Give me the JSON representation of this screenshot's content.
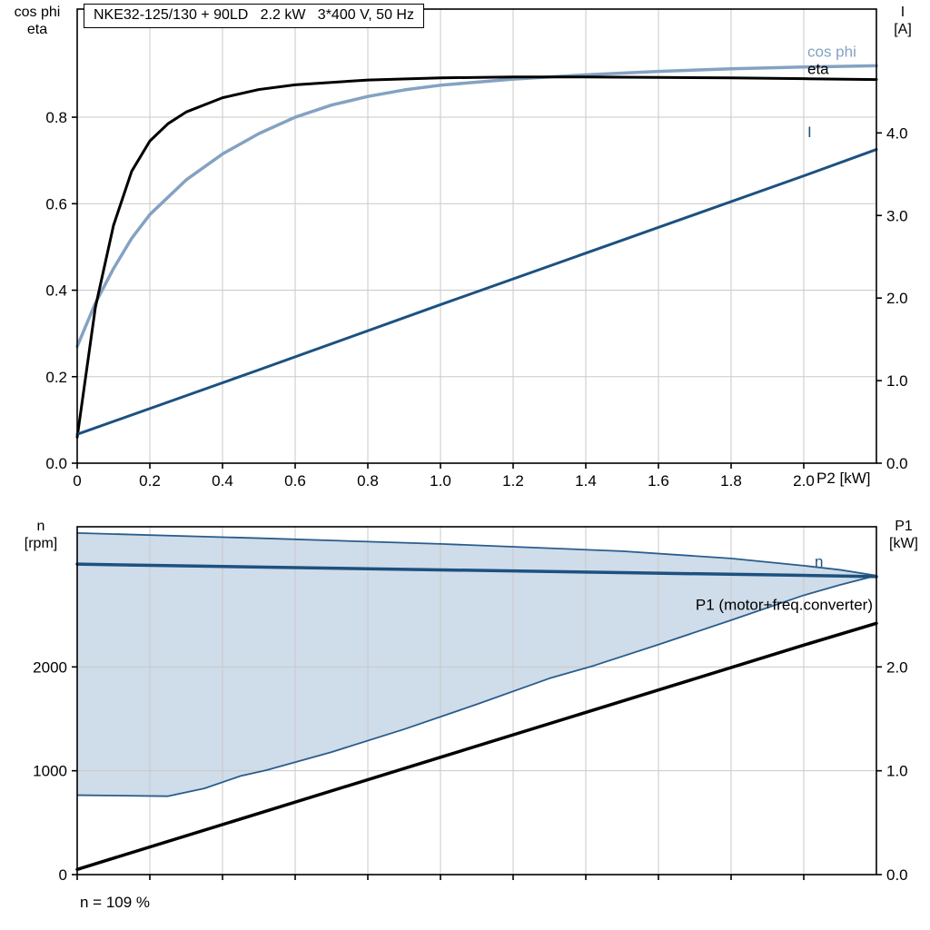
{
  "footnote": "n = 109 %",
  "axis_corner_labels": {
    "top_left": [
      "cos phi",
      "eta"
    ],
    "top_right": [
      "I",
      "[A]"
    ],
    "bottom_left": [
      "n",
      "[rpm]"
    ],
    "bottom_right": [
      "P1",
      "[kW]"
    ],
    "x_axis": "P2 [kW]"
  },
  "colors": {
    "cos_phi": "#84a2c2",
    "eta": "#000000",
    "current": "#1c5180",
    "speed": "#1c5180",
    "p1": "#000000",
    "band_fill": "#cfdce9",
    "band_edge": "#2a5d8c",
    "grid": "#c9c9c9",
    "frame": "#000000"
  },
  "chart_data": [
    {
      "type": "line",
      "name": "motor-performance-curves",
      "title": "NKE32-125/130 + 90LD   2.2 kW   3*400 V, 50 Hz",
      "x_axis": {
        "label": "P2 [kW]",
        "range": [
          0,
          2.2
        ],
        "ticks": [
          0,
          0.2,
          0.4,
          0.6,
          0.8,
          1.0,
          1.2,
          1.4,
          1.6,
          1.8,
          2.0
        ],
        "tick_labels": [
          "0",
          "0.2",
          "0.4",
          "0.6",
          "0.8",
          "1.0",
          "1.2",
          "1.4",
          "1.6",
          "1.8",
          "2.0"
        ]
      },
      "left_axis": {
        "label": "cos phi / eta",
        "range": [
          0,
          1.05
        ],
        "ticks": [
          0,
          0.2,
          0.4,
          0.6,
          0.8
        ],
        "tick_labels": [
          "0.0",
          "0.2",
          "0.4",
          "0.6",
          "0.8"
        ]
      },
      "right_axis": {
        "label": "I [A]",
        "range": [
          0,
          5.5
        ],
        "ticks": [
          0,
          1,
          2,
          3,
          4
        ],
        "tick_labels": [
          "0.0",
          "1.0",
          "2.0",
          "3.0",
          "4.0"
        ]
      },
      "series": [
        {
          "id": "cos-phi",
          "label": "cos phi",
          "axis": "left",
          "color_key": "cos_phi",
          "width": 3.5,
          "label_at": [
            2.01,
            0.94
          ],
          "label_anchor": "start",
          "points": [
            [
              0,
              0.27
            ],
            [
              0.05,
              0.37
            ],
            [
              0.1,
              0.45
            ],
            [
              0.15,
              0.52
            ],
            [
              0.2,
              0.575
            ],
            [
              0.3,
              0.655
            ],
            [
              0.4,
              0.715
            ],
            [
              0.5,
              0.762
            ],
            [
              0.6,
              0.8
            ],
            [
              0.7,
              0.828
            ],
            [
              0.8,
              0.848
            ],
            [
              0.9,
              0.863
            ],
            [
              1.0,
              0.874
            ],
            [
              1.2,
              0.888
            ],
            [
              1.4,
              0.898
            ],
            [
              1.6,
              0.906
            ],
            [
              1.8,
              0.912
            ],
            [
              2.0,
              0.916
            ],
            [
              2.2,
              0.919
            ]
          ]
        },
        {
          "id": "eta",
          "label": "eta",
          "axis": "left",
          "color_key": "eta",
          "width": 3,
          "label_at": [
            2.01,
            0.9
          ],
          "label_anchor": "start",
          "points": [
            [
              0,
              0.06
            ],
            [
              0.05,
              0.36
            ],
            [
              0.1,
              0.55
            ],
            [
              0.15,
              0.675
            ],
            [
              0.2,
              0.745
            ],
            [
              0.25,
              0.785
            ],
            [
              0.3,
              0.812
            ],
            [
              0.4,
              0.845
            ],
            [
              0.5,
              0.864
            ],
            [
              0.6,
              0.875
            ],
            [
              0.8,
              0.886
            ],
            [
              1.0,
              0.891
            ],
            [
              1.2,
              0.893
            ],
            [
              1.4,
              0.893
            ],
            [
              1.6,
              0.892
            ],
            [
              1.8,
              0.891
            ],
            [
              2.0,
              0.889
            ],
            [
              2.2,
              0.887
            ]
          ]
        },
        {
          "id": "current",
          "label": "I",
          "axis": "right",
          "color_key": "current",
          "width": 3,
          "label_at": [
            2.01,
            3.95
          ],
          "label_anchor": "start",
          "points": [
            [
              0,
              0.35
            ],
            [
              0.5,
              1.13
            ],
            [
              1.0,
              1.92
            ],
            [
              1.5,
              2.7
            ],
            [
              2.0,
              3.48
            ],
            [
              2.2,
              3.8
            ]
          ]
        }
      ]
    },
    {
      "type": "line",
      "name": "speed-and-input-power",
      "x_axis": {
        "label": "",
        "range": [
          0,
          2.2
        ],
        "ticks": [
          0,
          0.2,
          0.4,
          0.6,
          0.8,
          1.0,
          1.2,
          1.4,
          1.6,
          1.8,
          2.0
        ],
        "tick_labels": null
      },
      "left_axis": {
        "label": "n [rpm]",
        "range": [
          0,
          3350
        ],
        "ticks": [
          0,
          1000,
          2000
        ],
        "tick_labels": [
          "0",
          "1000",
          "2000"
        ]
      },
      "right_axis": {
        "label": "P1 [kW]",
        "range": [
          0,
          3.35
        ],
        "ticks": [
          0,
          1,
          2
        ],
        "tick_labels": [
          "0.0",
          "1.0",
          "2.0"
        ]
      },
      "band": {
        "name": "speed-control-range",
        "upper": [
          [
            0,
            3290
          ],
          [
            0.5,
            3240
          ],
          [
            1.0,
            3185
          ],
          [
            1.5,
            3115
          ],
          [
            1.8,
            3045
          ],
          [
            2.0,
            2975
          ],
          [
            2.1,
            2935
          ],
          [
            2.2,
            2880
          ]
        ],
        "lower": [
          [
            0,
            765
          ],
          [
            0.25,
            755
          ],
          [
            0.35,
            830
          ],
          [
            0.45,
            950
          ],
          [
            0.52,
            1005
          ],
          [
            0.7,
            1180
          ],
          [
            0.9,
            1400
          ],
          [
            1.1,
            1640
          ],
          [
            1.3,
            1890
          ],
          [
            1.42,
            2010
          ],
          [
            1.6,
            2215
          ],
          [
            1.8,
            2450
          ],
          [
            2.0,
            2690
          ],
          [
            2.1,
            2790
          ],
          [
            2.2,
            2880
          ]
        ]
      },
      "series": [
        {
          "id": "speed",
          "label": "n",
          "axis": "left",
          "color_key": "speed",
          "width": 3.5,
          "label_at": [
            2.03,
            2965
          ],
          "label_anchor": "start",
          "points": [
            [
              0,
              2990
            ],
            [
              0.5,
              2962
            ],
            [
              1.0,
              2935
            ],
            [
              1.5,
              2908
            ],
            [
              2.0,
              2882
            ],
            [
              2.2,
              2870
            ]
          ]
        },
        {
          "id": "p1",
          "label": "P1 (motor+freq.converter)",
          "axis": "right",
          "color_key": "p1",
          "width": 3.5,
          "label_at": [
            2.19,
            2.55
          ],
          "label_anchor": "end",
          "points": [
            [
              0,
              0.05
            ],
            [
              0.5,
              0.59
            ],
            [
              1.0,
              1.13
            ],
            [
              1.5,
              1.67
            ],
            [
              2.0,
              2.21
            ],
            [
              2.2,
              2.42
            ]
          ]
        }
      ]
    }
  ]
}
